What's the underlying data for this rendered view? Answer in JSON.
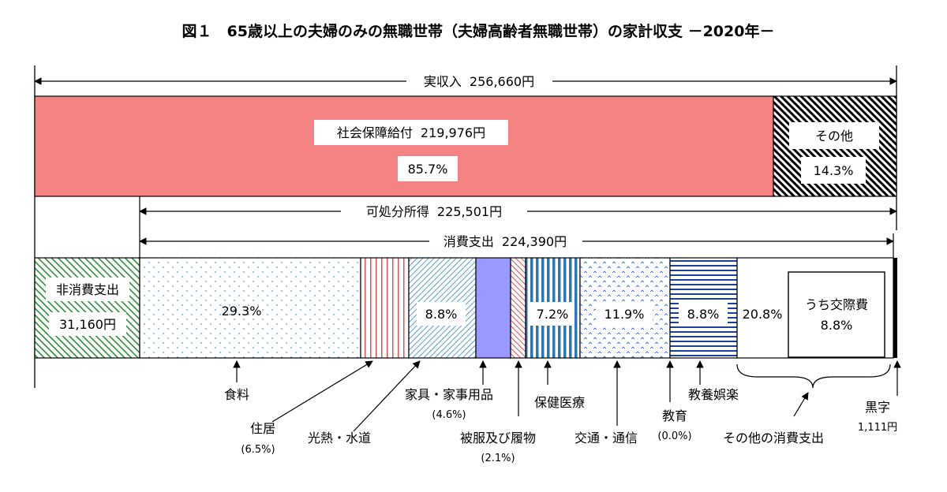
{
  "chart_data": {
    "type": "bar",
    "title": "図１　65歳以上の夫婦のみの無職世帯（夫婦高齢者無職世帯）の家計収支 －2020年－",
    "income": {
      "label": "実収入",
      "value_text": "256,660円",
      "value": 256660,
      "segments": [
        {
          "label": "社会保障給付",
          "value_text": "219,976円",
          "value": 219976,
          "pct_text": "85.7%",
          "pct": 85.7,
          "color": "#f58383"
        },
        {
          "label": "その他",
          "pct_text": "14.3%",
          "pct": 14.3,
          "color": "#000000"
        }
      ]
    },
    "disposable": {
      "label": "可処分所得",
      "value_text": "225,501円",
      "value": 225501
    },
    "consumption": {
      "label": "消費支出",
      "value_text": "224,390円",
      "value": 224390
    },
    "non_consumption": {
      "label": "非消費支出",
      "value_text": "31,160円",
      "value": 31160
    },
    "expenditure_segments": [
      {
        "key": "food",
        "label": "食料",
        "pct_text": "29.3%",
        "pct": 29.3,
        "color": "#5b9bd5"
      },
      {
        "key": "housing",
        "label": "住居",
        "sub": "(6.5%)",
        "pct": 6.5,
        "color": "#e05050"
      },
      {
        "key": "utilities",
        "label": "光熱・水道",
        "pct_text": "8.8%",
        "pct": 8.8,
        "color": "#5b9bd5"
      },
      {
        "key": "furniture",
        "label": "家具・家事用品",
        "sub": "(4.6%)",
        "pct": 4.6,
        "color": "#9999ff"
      },
      {
        "key": "clothing",
        "label": "被服及び履物",
        "sub": "(2.1%)",
        "pct": 2.1,
        "color": "#e05050"
      },
      {
        "key": "medical",
        "label": "保健医療",
        "pct_text": "7.2%",
        "pct": 7.2,
        "color": "#2e75b6"
      },
      {
        "key": "transport",
        "label": "交通・通信",
        "pct_text": "11.9%",
        "pct": 11.9,
        "color": "#4472c4"
      },
      {
        "key": "education",
        "label": "教育",
        "sub": "(0.0%)",
        "pct": 0.0,
        "color": "#000000"
      },
      {
        "key": "recreation",
        "label": "教養娯楽",
        "pct_text": "8.8%",
        "pct": 8.8,
        "color": "#1f3f99"
      },
      {
        "key": "other",
        "label": "その他の消費支出",
        "pct_text": "20.8%",
        "pct": 20.8,
        "color": "#ffffff",
        "inner_label": "うち交際費",
        "inner_pct_text": "8.8%",
        "inner_pct": 8.8
      }
    ],
    "surplus": {
      "label": "黒字",
      "value_text": "1,111円",
      "value": 1111,
      "color": "#000000"
    }
  }
}
